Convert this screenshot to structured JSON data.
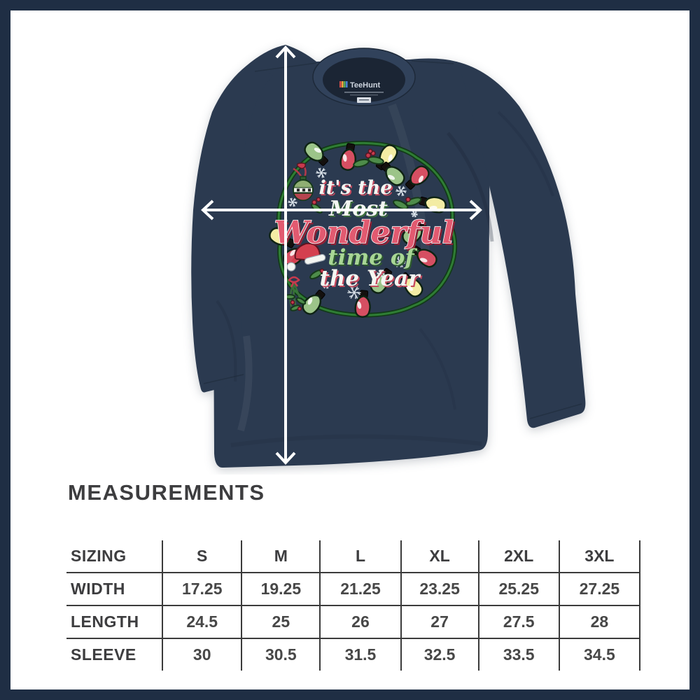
{
  "colors": {
    "frame": "#1f2e44",
    "background": "#ffffff",
    "shirt": "#2b3a50",
    "collar_inner": "#1b2534",
    "arrow": "#ffffff",
    "table_line": "#3b3b3b",
    "text_dark": "#3d3d3f",
    "string_green": "#2f7d34",
    "bulb_red": "#d64f62",
    "bulb_green": "#9cc489",
    "bulb_yellow": "#f3eca4",
    "holly_green": "#4e8c4a",
    "script_white": "#f4f6f2",
    "script_pink": "#e25a70",
    "script_green": "#a8d695"
  },
  "product": {
    "tag": {
      "brand": "TeeHunt"
    },
    "design": {
      "line1": "it's the",
      "line2": "Most",
      "line3": "Wonderful",
      "line4": "time of",
      "line5": "the Year",
      "motifs": [
        "christmas-lights-wreath",
        "ornament-ball",
        "santa-hat",
        "mistletoe",
        "holly-leaves",
        "snowflakes"
      ]
    }
  },
  "measurement_arrows": {
    "vertical": "length-arrow",
    "horizontal": "width-arrow"
  },
  "measurements": {
    "title": "MEASUREMENTS",
    "table": {
      "header": [
        "SIZING",
        "S",
        "M",
        "L",
        "XL",
        "2XL",
        "3XL"
      ],
      "rows": [
        {
          "label": "WIDTH",
          "values": [
            "17.25",
            "19.25",
            "21.25",
            "23.25",
            "25.25",
            "27.25"
          ]
        },
        {
          "label": "LENGTH",
          "values": [
            "24.5",
            "25",
            "26",
            "27",
            "27.5",
            "28"
          ]
        },
        {
          "label": "SLEEVE",
          "values": [
            "30",
            "30.5",
            "31.5",
            "32.5",
            "33.5",
            "34.5"
          ]
        }
      ]
    }
  }
}
